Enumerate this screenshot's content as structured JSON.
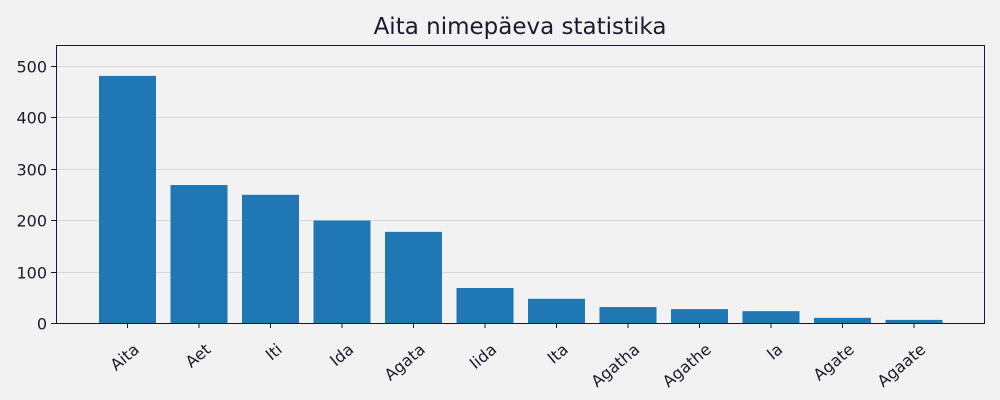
{
  "chart_data": {
    "type": "bar",
    "title": "Aita nimepäeva statistika",
    "xlabel": "",
    "ylabel": "",
    "categories": [
      "Aita",
      "Aet",
      "Iti",
      "Ida",
      "Agata",
      "Iida",
      "Ita",
      "Agatha",
      "Agathe",
      "Ia",
      "Agate",
      "Agaate"
    ],
    "values": [
      480,
      268,
      249,
      199,
      177,
      68,
      47,
      31,
      27,
      23,
      10,
      6
    ],
    "ylim": [
      0,
      540
    ],
    "yticks": [
      0,
      100,
      200,
      300,
      400,
      500
    ],
    "grid": "y",
    "bar_color": "#1f77b4",
    "background": "#f2f2f2"
  }
}
